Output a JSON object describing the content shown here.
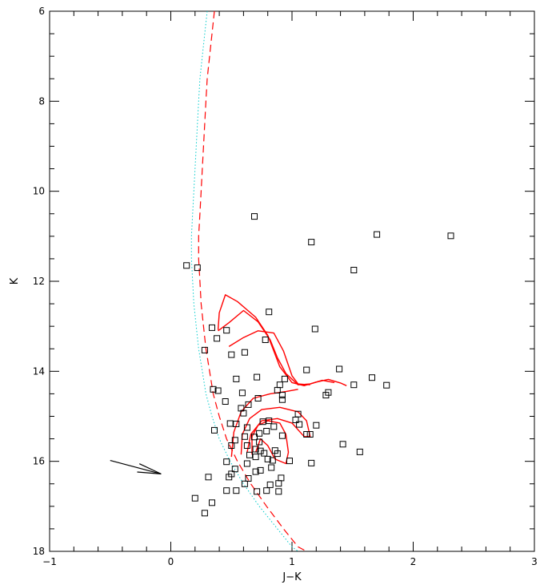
{
  "chart_data": {
    "type": "scatter",
    "xlabel": "J−K",
    "ylabel": "K",
    "xlim": [
      -1,
      3
    ],
    "ylim": [
      18,
      6
    ],
    "y_inverted": true,
    "x_ticks": [
      "−1",
      "0",
      "1",
      "2",
      "3"
    ],
    "y_ticks": [
      "6",
      "8",
      "10",
      "12",
      "14",
      "16",
      "18"
    ],
    "grid": false,
    "colors": {
      "points": "#000000",
      "isochrone": "#ff0000",
      "ms_dotted": "#00cccc",
      "arrow": "#000000"
    },
    "points": [
      {
        "x": 0.69,
        "y": 10.56
      },
      {
        "x": 1.16,
        "y": 11.13
      },
      {
        "x": 1.7,
        "y": 10.96
      },
      {
        "x": 2.31,
        "y": 10.99
      },
      {
        "x": 0.13,
        "y": 11.65
      },
      {
        "x": 0.22,
        "y": 11.7
      },
      {
        "x": 1.51,
        "y": 11.75
      },
      {
        "x": 0.81,
        "y": 12.68
      },
      {
        "x": 0.34,
        "y": 13.03
      },
      {
        "x": 0.46,
        "y": 13.09
      },
      {
        "x": 1.19,
        "y": 13.06
      },
      {
        "x": 0.38,
        "y": 13.27
      },
      {
        "x": 0.78,
        "y": 13.3
      },
      {
        "x": 0.28,
        "y": 13.53
      },
      {
        "x": 0.5,
        "y": 13.63
      },
      {
        "x": 0.61,
        "y": 13.58
      },
      {
        "x": 1.39,
        "y": 13.95
      },
      {
        "x": 1.12,
        "y": 13.97
      },
      {
        "x": 0.71,
        "y": 14.13
      },
      {
        "x": 0.54,
        "y": 14.17
      },
      {
        "x": 0.94,
        "y": 14.17
      },
      {
        "x": 1.66,
        "y": 14.14
      },
      {
        "x": 0.9,
        "y": 14.3
      },
      {
        "x": 1.51,
        "y": 14.3
      },
      {
        "x": 1.78,
        "y": 14.31
      },
      {
        "x": 0.35,
        "y": 14.4
      },
      {
        "x": 0.39,
        "y": 14.43
      },
      {
        "x": 0.88,
        "y": 14.42
      },
      {
        "x": 0.59,
        "y": 14.48
      },
      {
        "x": 0.92,
        "y": 14.53
      },
      {
        "x": 1.3,
        "y": 14.47
      },
      {
        "x": 1.28,
        "y": 14.53
      },
      {
        "x": 0.72,
        "y": 14.6
      },
      {
        "x": 0.92,
        "y": 14.63
      },
      {
        "x": 0.45,
        "y": 14.67
      },
      {
        "x": 0.64,
        "y": 14.74
      },
      {
        "x": 0.58,
        "y": 14.82
      },
      {
        "x": 0.6,
        "y": 14.93
      },
      {
        "x": 1.05,
        "y": 14.95
      },
      {
        "x": 1.03,
        "y": 15.08
      },
      {
        "x": 0.76,
        "y": 15.12
      },
      {
        "x": 0.81,
        "y": 15.1
      },
      {
        "x": 0.49,
        "y": 15.16
      },
      {
        "x": 0.54,
        "y": 15.17
      },
      {
        "x": 1.06,
        "y": 15.18
      },
      {
        "x": 1.2,
        "y": 15.2
      },
      {
        "x": 0.63,
        "y": 15.25
      },
      {
        "x": 0.85,
        "y": 15.23
      },
      {
        "x": 0.79,
        "y": 15.33
      },
      {
        "x": 0.73,
        "y": 15.38
      },
      {
        "x": 0.36,
        "y": 15.31
      },
      {
        "x": 1.12,
        "y": 15.4
      },
      {
        "x": 1.15,
        "y": 15.4
      },
      {
        "x": 0.92,
        "y": 15.43
      },
      {
        "x": 0.61,
        "y": 15.45
      },
      {
        "x": 0.69,
        "y": 15.46
      },
      {
        "x": 0.53,
        "y": 15.53
      },
      {
        "x": 0.73,
        "y": 15.57
      },
      {
        "x": 0.5,
        "y": 15.65
      },
      {
        "x": 1.42,
        "y": 15.62
      },
      {
        "x": 0.63,
        "y": 15.65
      },
      {
        "x": 1.56,
        "y": 15.79
      },
      {
        "x": 0.7,
        "y": 15.73
      },
      {
        "x": 0.74,
        "y": 15.77
      },
      {
        "x": 0.77,
        "y": 15.82
      },
      {
        "x": 0.86,
        "y": 15.76
      },
      {
        "x": 0.65,
        "y": 15.86
      },
      {
        "x": 0.88,
        "y": 15.83
      },
      {
        "x": 0.7,
        "y": 15.9
      },
      {
        "x": 0.8,
        "y": 15.95
      },
      {
        "x": 0.84,
        "y": 15.98
      },
      {
        "x": 0.98,
        "y": 15.99
      },
      {
        "x": 1.16,
        "y": 16.04
      },
      {
        "x": 0.46,
        "y": 16.01
      },
      {
        "x": 0.63,
        "y": 16.05
      },
      {
        "x": 0.83,
        "y": 16.14
      },
      {
        "x": 0.74,
        "y": 16.2
      },
      {
        "x": 0.7,
        "y": 16.23
      },
      {
        "x": 0.53,
        "y": 16.17
      },
      {
        "x": 0.5,
        "y": 16.28
      },
      {
        "x": 0.48,
        "y": 16.35
      },
      {
        "x": 0.31,
        "y": 16.35
      },
      {
        "x": 0.64,
        "y": 16.38
      },
      {
        "x": 0.91,
        "y": 16.37
      },
      {
        "x": 0.61,
        "y": 16.5
      },
      {
        "x": 0.89,
        "y": 16.49
      },
      {
        "x": 0.82,
        "y": 16.52
      },
      {
        "x": 0.46,
        "y": 16.65
      },
      {
        "x": 0.54,
        "y": 16.65
      },
      {
        "x": 0.71,
        "y": 16.67
      },
      {
        "x": 0.79,
        "y": 16.65
      },
      {
        "x": 0.89,
        "y": 16.67
      },
      {
        "x": 0.2,
        "y": 16.82
      },
      {
        "x": 0.34,
        "y": 16.92
      },
      {
        "x": 0.28,
        "y": 17.15
      }
    ],
    "isochrone_dashed": [
      [
        0.36,
        6.0
      ],
      [
        0.34,
        6.5
      ],
      [
        0.32,
        7.0
      ],
      [
        0.3,
        7.5
      ],
      [
        0.29,
        8.0
      ],
      [
        0.28,
        8.5
      ],
      [
        0.27,
        9.0
      ],
      [
        0.26,
        9.5
      ],
      [
        0.25,
        10.0
      ],
      [
        0.24,
        10.5
      ],
      [
        0.23,
        11.0
      ],
      [
        0.23,
        11.5
      ],
      [
        0.24,
        12.0
      ],
      [
        0.25,
        12.5
      ],
      [
        0.27,
        13.0
      ],
      [
        0.29,
        13.5
      ],
      [
        0.32,
        14.0
      ],
      [
        0.35,
        14.5
      ],
      [
        0.4,
        15.0
      ],
      [
        0.46,
        15.5
      ],
      [
        0.55,
        16.0
      ],
      [
        0.66,
        16.5
      ],
      [
        0.79,
        17.0
      ],
      [
        0.93,
        17.5
      ],
      [
        1.05,
        17.9
      ],
      [
        1.12,
        18.0
      ]
    ],
    "ms_dotted": [
      [
        0.3,
        6.0
      ],
      [
        0.28,
        6.5
      ],
      [
        0.26,
        7.0
      ],
      [
        0.24,
        7.5
      ],
      [
        0.23,
        8.0
      ],
      [
        0.22,
        8.5
      ],
      [
        0.21,
        9.0
      ],
      [
        0.2,
        9.5
      ],
      [
        0.19,
        10.0
      ],
      [
        0.18,
        10.5
      ],
      [
        0.17,
        11.0
      ],
      [
        0.17,
        11.5
      ],
      [
        0.18,
        12.0
      ],
      [
        0.19,
        12.5
      ],
      [
        0.21,
        13.0
      ],
      [
        0.23,
        13.5
      ],
      [
        0.26,
        14.0
      ],
      [
        0.29,
        14.5
      ],
      [
        0.34,
        15.0
      ],
      [
        0.4,
        15.5
      ],
      [
        0.49,
        16.0
      ],
      [
        0.6,
        16.5
      ],
      [
        0.73,
        17.0
      ],
      [
        0.88,
        17.5
      ],
      [
        1.0,
        17.9
      ],
      [
        1.05,
        18.0
      ]
    ],
    "isochrones_solid": [
      [
        [
          0.39,
          13.08
        ],
        [
          0.4,
          12.7
        ],
        [
          0.45,
          12.3
        ],
        [
          0.55,
          12.45
        ],
        [
          0.7,
          12.8
        ],
        [
          0.8,
          13.2
        ],
        [
          0.85,
          13.55
        ],
        [
          0.9,
          13.9
        ],
        [
          1.0,
          14.25
        ],
        [
          1.1,
          14.32
        ],
        [
          1.2,
          14.24
        ],
        [
          1.3,
          14.18
        ],
        [
          1.4,
          14.26
        ],
        [
          1.45,
          14.32
        ]
      ],
      [
        [
          0.39,
          13.1
        ],
        [
          0.48,
          12.92
        ],
        [
          0.6,
          12.65
        ],
        [
          0.72,
          12.9
        ],
        [
          0.82,
          13.3
        ],
        [
          0.88,
          13.7
        ],
        [
          0.95,
          14.05
        ],
        [
          1.05,
          14.3
        ],
        [
          1.15,
          14.28
        ],
        [
          1.25,
          14.2
        ],
        [
          1.35,
          14.25
        ]
      ],
      [
        [
          0.48,
          13.45
        ],
        [
          0.6,
          13.25
        ],
        [
          0.72,
          13.1
        ],
        [
          0.85,
          13.15
        ],
        [
          0.93,
          13.55
        ],
        [
          1.0,
          14.1
        ],
        [
          1.05,
          14.28
        ],
        [
          1.15,
          14.3
        ]
      ],
      [
        [
          0.5,
          15.9
        ],
        [
          0.52,
          15.35
        ],
        [
          0.58,
          14.9
        ],
        [
          0.68,
          14.6
        ],
        [
          0.82,
          14.5
        ],
        [
          0.95,
          14.45
        ],
        [
          1.05,
          14.4
        ]
      ],
      [
        [
          0.58,
          15.85
        ],
        [
          0.59,
          15.4
        ],
        [
          0.65,
          15.05
        ],
        [
          0.75,
          14.85
        ],
        [
          0.9,
          14.8
        ],
        [
          1.05,
          14.9
        ],
        [
          1.12,
          15.1
        ],
        [
          1.15,
          15.45
        ],
        [
          1.1,
          15.45
        ],
        [
          1.0,
          15.15
        ],
        [
          0.88,
          15.05
        ],
        [
          0.75,
          15.1
        ],
        [
          0.66,
          15.4
        ],
        [
          0.63,
          15.8
        ]
      ],
      [
        [
          0.67,
          15.85
        ],
        [
          0.67,
          15.45
        ],
        [
          0.72,
          15.2
        ],
        [
          0.8,
          15.1
        ],
        [
          0.9,
          15.15
        ],
        [
          0.95,
          15.4
        ],
        [
          0.97,
          15.8
        ],
        [
          0.95,
          16.05
        ],
        [
          0.86,
          15.95
        ],
        [
          0.8,
          15.65
        ],
        [
          0.74,
          15.5
        ],
        [
          0.7,
          15.8
        ]
      ]
    ],
    "reddening_vector": {
      "from": [
        -0.5,
        15.98
      ],
      "to": [
        -0.08,
        16.28
      ]
    }
  }
}
